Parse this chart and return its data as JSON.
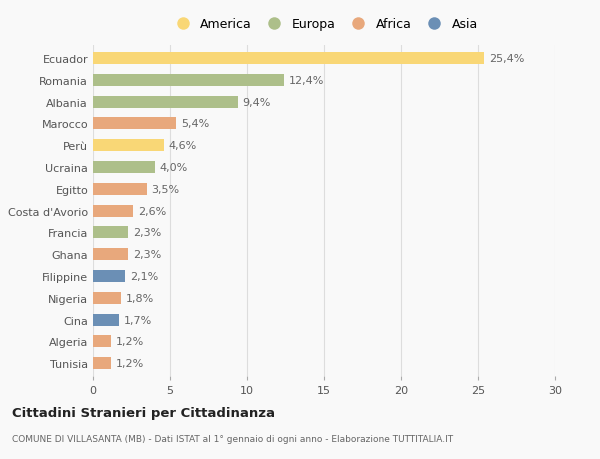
{
  "countries": [
    "Ecuador",
    "Romania",
    "Albania",
    "Marocco",
    "Perù",
    "Ucraina",
    "Egitto",
    "Costa d'Avorio",
    "Francia",
    "Ghana",
    "Filippine",
    "Nigeria",
    "Cina",
    "Algeria",
    "Tunisia"
  ],
  "values": [
    25.4,
    12.4,
    9.4,
    5.4,
    4.6,
    4.0,
    3.5,
    2.6,
    2.3,
    2.3,
    2.1,
    1.8,
    1.7,
    1.2,
    1.2
  ],
  "labels": [
    "25,4%",
    "12,4%",
    "9,4%",
    "5,4%",
    "4,6%",
    "4,0%",
    "3,5%",
    "2,6%",
    "2,3%",
    "2,3%",
    "2,1%",
    "1,8%",
    "1,7%",
    "1,2%",
    "1,2%"
  ],
  "colors": [
    "#F9D776",
    "#ADBF8A",
    "#ADBF8A",
    "#E8A87C",
    "#F9D776",
    "#ADBF8A",
    "#E8A87C",
    "#E8A87C",
    "#ADBF8A",
    "#E8A87C",
    "#6B8FB5",
    "#E8A87C",
    "#6B8FB5",
    "#E8A87C",
    "#E8A87C"
  ],
  "legend": [
    {
      "label": "America",
      "color": "#F9D776"
    },
    {
      "label": "Europa",
      "color": "#ADBF8A"
    },
    {
      "label": "Africa",
      "color": "#E8A87C"
    },
    {
      "label": "Asia",
      "color": "#6B8FB5"
    }
  ],
  "title": "Cittadini Stranieri per Cittadinanza",
  "subtitle": "COMUNE DI VILLASANTA (MB) - Dati ISTAT al 1° gennaio di ogni anno - Elaborazione TUTTITALIA.IT",
  "xlim": [
    0,
    30
  ],
  "xticks": [
    0,
    5,
    10,
    15,
    20,
    25,
    30
  ],
  "background_color": "#f9f9f9",
  "bar_height": 0.55,
  "grid_color": "#dddddd",
  "label_fontsize": 8,
  "tick_fontsize": 8,
  "country_fontsize": 8
}
